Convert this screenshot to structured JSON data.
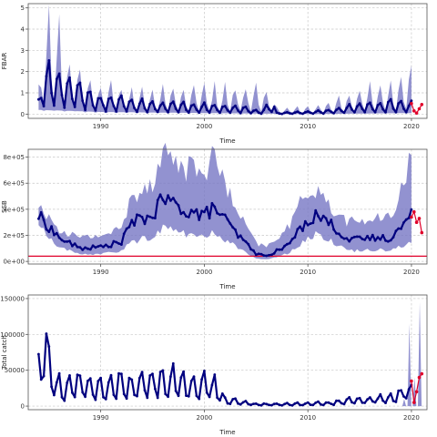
{
  "chart_data": [
    {
      "type": "area",
      "panel": "fbar",
      "ylabel": "FBAR",
      "xlabel": "Time",
      "xlim": [
        1983,
        2021.5
      ],
      "ylim": [
        -0.2,
        5.2
      ],
      "x_ticks": [
        1990,
        2000,
        2010,
        2020
      ],
      "y_ticks": [
        0,
        1,
        2,
        3,
        4,
        5
      ],
      "y_tick_labels": [
        "0",
        "1",
        "2",
        "3",
        "4",
        "5"
      ],
      "grid": true,
      "colors": {
        "median": "#00007f",
        "band": "#7777c4",
        "projection": "#e0002a"
      },
      "series": [
        {
          "role": "median",
          "anchors": [
            [
              1984,
              0.6
            ],
            [
              1984.5,
              1.9
            ],
            [
              1985.5,
              1.9
            ],
            [
              1986.5,
              1.5
            ],
            [
              1987.5,
              1.5
            ],
            [
              1988.5,
              1.0
            ],
            [
              1990,
              0.7
            ],
            [
              1992,
              0.65
            ],
            [
              1994,
              0.55
            ],
            [
              1996,
              0.45
            ],
            [
              1998,
              0.42
            ],
            [
              2000,
              0.38
            ],
            [
              2002,
              0.32
            ],
            [
              2004,
              0.25
            ],
            [
              2005.5,
              0.1
            ],
            [
              2006.5,
              0.6
            ],
            [
              2007,
              0.05
            ],
            [
              2010,
              0.1
            ],
            [
              2012,
              0.15
            ],
            [
              2014,
              0.35
            ],
            [
              2016,
              0.45
            ],
            [
              2018,
              0.5
            ],
            [
              2020,
              0.45
            ]
          ]
        },
        {
          "role": "upper",
          "anchors": [
            [
              1984,
              1.2
            ],
            [
              1984.5,
              4.8
            ],
            [
              1985.5,
              4.8
            ],
            [
              1986.5,
              3.2
            ],
            [
              1987.5,
              2.4
            ],
            [
              1988.5,
              1.6
            ],
            [
              1990,
              1.5
            ],
            [
              1992,
              1.3
            ],
            [
              1994,
              1.2
            ],
            [
              1996,
              1.2
            ],
            [
              1998,
              1.25
            ],
            [
              2000,
              1.3
            ],
            [
              2002,
              1.3
            ],
            [
              2004,
              1.3
            ],
            [
              2005.5,
              1.3
            ],
            [
              2006.5,
              1.0
            ],
            [
              2007,
              0.3
            ],
            [
              2010,
              0.35
            ],
            [
              2012,
              0.65
            ],
            [
              2014,
              1.0
            ],
            [
              2016,
              1.35
            ],
            [
              2018,
              1.4
            ],
            [
              2020,
              2.4
            ]
          ]
        },
        {
          "role": "lower",
          "anchors": [
            [
              1984,
              0.2
            ],
            [
              1990,
              0.1
            ],
            [
              2000,
              0.05
            ],
            [
              2010,
              0.0
            ],
            [
              2020,
              0.05
            ]
          ]
        },
        {
          "role": "projection",
          "x": [
            2020.0,
            2020.25,
            2020.5,
            2020.75,
            2021.0
          ],
          "y": [
            0.5,
            0.15,
            0.05,
            0.25,
            0.45
          ]
        }
      ]
    },
    {
      "type": "area",
      "panel": "ssb",
      "ylabel": "SSB",
      "xlabel": "Time",
      "xlim": [
        1983,
        2021.5
      ],
      "ylim": [
        -20000,
        860000
      ],
      "x_ticks": [
        1990,
        2000,
        2010,
        2020
      ],
      "y_ticks": [
        0,
        200000,
        400000,
        600000,
        800000
      ],
      "y_tick_labels": [
        "0e+00",
        "2e+05",
        "4e+05",
        "6e+05",
        "8e+05"
      ],
      "grid": true,
      "reference_line": 40000,
      "colors": {
        "median": "#00007f",
        "band": "#7777c4",
        "projection": "#e0002a",
        "reference": "#e0002a"
      },
      "series": [
        {
          "role": "median",
          "anchors": [
            [
              1984,
              350000
            ],
            [
              1986,
              180000
            ],
            [
              1988,
              100000
            ],
            [
              1990,
              110000
            ],
            [
              1992,
              150000
            ],
            [
              1993,
              300000
            ],
            [
              1995,
              350000
            ],
            [
              1996,
              480000
            ],
            [
              1998,
              400000
            ],
            [
              2000,
              350000
            ],
            [
              2001,
              420000
            ],
            [
              2003,
              220000
            ],
            [
              2005,
              60000
            ],
            [
              2006,
              40000
            ],
            [
              2008,
              120000
            ],
            [
              2010,
              320000
            ],
            [
              2011,
              360000
            ],
            [
              2012,
              300000
            ],
            [
              2014,
              160000
            ],
            [
              2016,
              180000
            ],
            [
              2018,
              180000
            ],
            [
              2020,
              350000
            ],
            [
              2021,
              220000
            ]
          ]
        },
        {
          "role": "upper",
          "anchors": [
            [
              1984,
              450000
            ],
            [
              1986,
              250000
            ],
            [
              1988,
              180000
            ],
            [
              1990,
              200000
            ],
            [
              1992,
              250000
            ],
            [
              1993,
              500000
            ],
            [
              1995,
              620000
            ],
            [
              1996,
              850000
            ],
            [
              1998,
              720000
            ],
            [
              2000,
              700000
            ],
            [
              2001,
              800000
            ],
            [
              2003,
              400000
            ],
            [
              2005,
              140000
            ],
            [
              2006,
              110000
            ],
            [
              2008,
              250000
            ],
            [
              2010,
              550000
            ],
            [
              2011,
              560000
            ],
            [
              2012,
              420000
            ],
            [
              2014,
              300000
            ],
            [
              2016,
              320000
            ],
            [
              2018,
              330000
            ],
            [
              2020,
              800000
            ],
            [
              2021,
              650000
            ]
          ]
        },
        {
          "role": "lower",
          "anchors": [
            [
              1984,
              280000
            ],
            [
              1986,
              110000
            ],
            [
              1988,
              50000
            ],
            [
              1990,
              60000
            ],
            [
              1992,
              80000
            ],
            [
              1993,
              150000
            ],
            [
              1995,
              190000
            ],
            [
              1996,
              260000
            ],
            [
              1998,
              220000
            ],
            [
              2000,
              180000
            ],
            [
              2001,
              220000
            ],
            [
              2003,
              120000
            ],
            [
              2005,
              20000
            ],
            [
              2006,
              15000
            ],
            [
              2008,
              60000
            ],
            [
              2010,
              180000
            ],
            [
              2011,
              210000
            ],
            [
              2012,
              170000
            ],
            [
              2014,
              80000
            ],
            [
              2016,
              90000
            ],
            [
              2018,
              90000
            ],
            [
              2020,
              150000
            ],
            [
              2021,
              100000
            ]
          ]
        },
        {
          "role": "projection",
          "x": [
            2020.0,
            2020.25,
            2020.5,
            2020.75,
            2021.0
          ],
          "y": [
            340000,
            380000,
            300000,
            330000,
            220000
          ]
        }
      ]
    },
    {
      "type": "line",
      "panel": "catch",
      "ylabel": "Total catch",
      "xlabel": "Time",
      "xlim": [
        1983,
        2021.5
      ],
      "ylim": [
        -5000,
        155000
      ],
      "x_ticks": [
        1990,
        2000,
        2010,
        2020
      ],
      "y_ticks": [
        0,
        50000,
        100000,
        150000
      ],
      "y_tick_labels": [
        "0",
        "50000",
        "100000",
        "150000"
      ],
      "grid": true,
      "colors": {
        "median": "#00007f",
        "band": "#7777c4",
        "projection": "#e0002a"
      },
      "series": [
        {
          "role": "median",
          "anchors": [
            [
              1984,
              65000
            ],
            [
              1984.5,
              108000
            ],
            [
              1985.5,
              40000
            ],
            [
              1986.5,
              25000
            ],
            [
              1987.5,
              45000
            ],
            [
              1989,
              28000
            ],
            [
              1990,
              30000
            ],
            [
              1991,
              32000
            ],
            [
              1992,
              40000
            ],
            [
              1993,
              35000
            ],
            [
              1995,
              40000
            ],
            [
              1997,
              42000
            ],
            [
              1999,
              30000
            ],
            [
              2000,
              40000
            ],
            [
              2001,
              35000
            ],
            [
              2002,
              10000
            ],
            [
              2005,
              3000
            ],
            [
              2008,
              3000
            ],
            [
              2012,
              5000
            ],
            [
              2016,
              12000
            ],
            [
              2018,
              15000
            ],
            [
              2020,
              30000
            ],
            [
              2020.5,
              45000
            ]
          ]
        },
        {
          "role": "upper",
          "x": [
            2019.3,
            2019.8,
            2020.3,
            2020.8
          ],
          "y": [
            10000,
            115000,
            40000,
            145000
          ]
        },
        {
          "role": "projection",
          "x": [
            2020.0,
            2020.25,
            2020.5,
            2020.75,
            2021.0
          ],
          "y": [
            35000,
            5000,
            20000,
            40000,
            45000
          ]
        }
      ]
    }
  ]
}
